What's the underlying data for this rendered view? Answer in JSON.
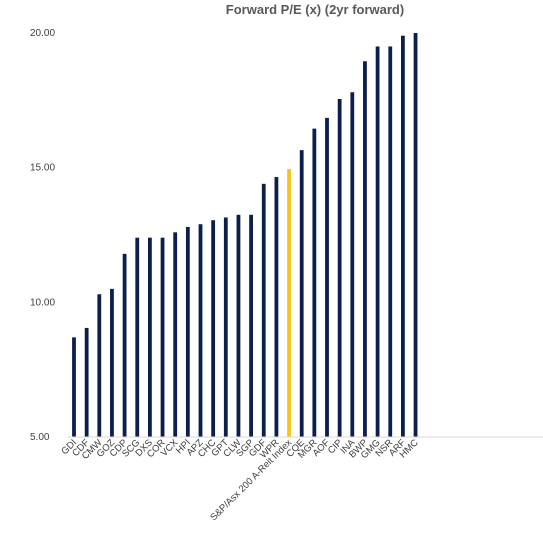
{
  "chart_data": {
    "type": "bar",
    "title": "Forward P/E (x) (2yr forward)",
    "xlabel": "",
    "ylabel": "",
    "ylim": [
      5,
      20
    ],
    "yticks": [
      "5.00",
      "10.00",
      "15.00",
      "20.00"
    ],
    "categories": [
      "GDI",
      "CDF",
      "CMW",
      "GOZ",
      "CDP",
      "SCG",
      "DXS",
      "COR",
      "VCX",
      "HPI",
      "APZ",
      "CHC",
      "GPT",
      "CLW",
      "SGP",
      "GDF",
      "WPR",
      "S&P/Asx 200 A-Reit Index",
      "CQE",
      "MGR",
      "AOF",
      "CIP",
      "INA",
      "BWP",
      "GMG",
      "NSR",
      "ARF",
      "HMC"
    ],
    "values": [
      8.7,
      9.05,
      10.3,
      10.5,
      11.8,
      12.4,
      12.4,
      12.4,
      12.6,
      12.8,
      12.9,
      13.05,
      13.15,
      13.25,
      13.25,
      14.4,
      14.65,
      14.95,
      15.65,
      16.45,
      16.85,
      17.55,
      17.8,
      18.95,
      19.5,
      19.5,
      19.9,
      20.0
    ],
    "highlight_category": "S&P/Asx 200 A-Reit Index",
    "colors": {
      "bar": "#0b1f4d",
      "highlight": "#f5c518"
    },
    "grid": false,
    "legend": "none"
  }
}
